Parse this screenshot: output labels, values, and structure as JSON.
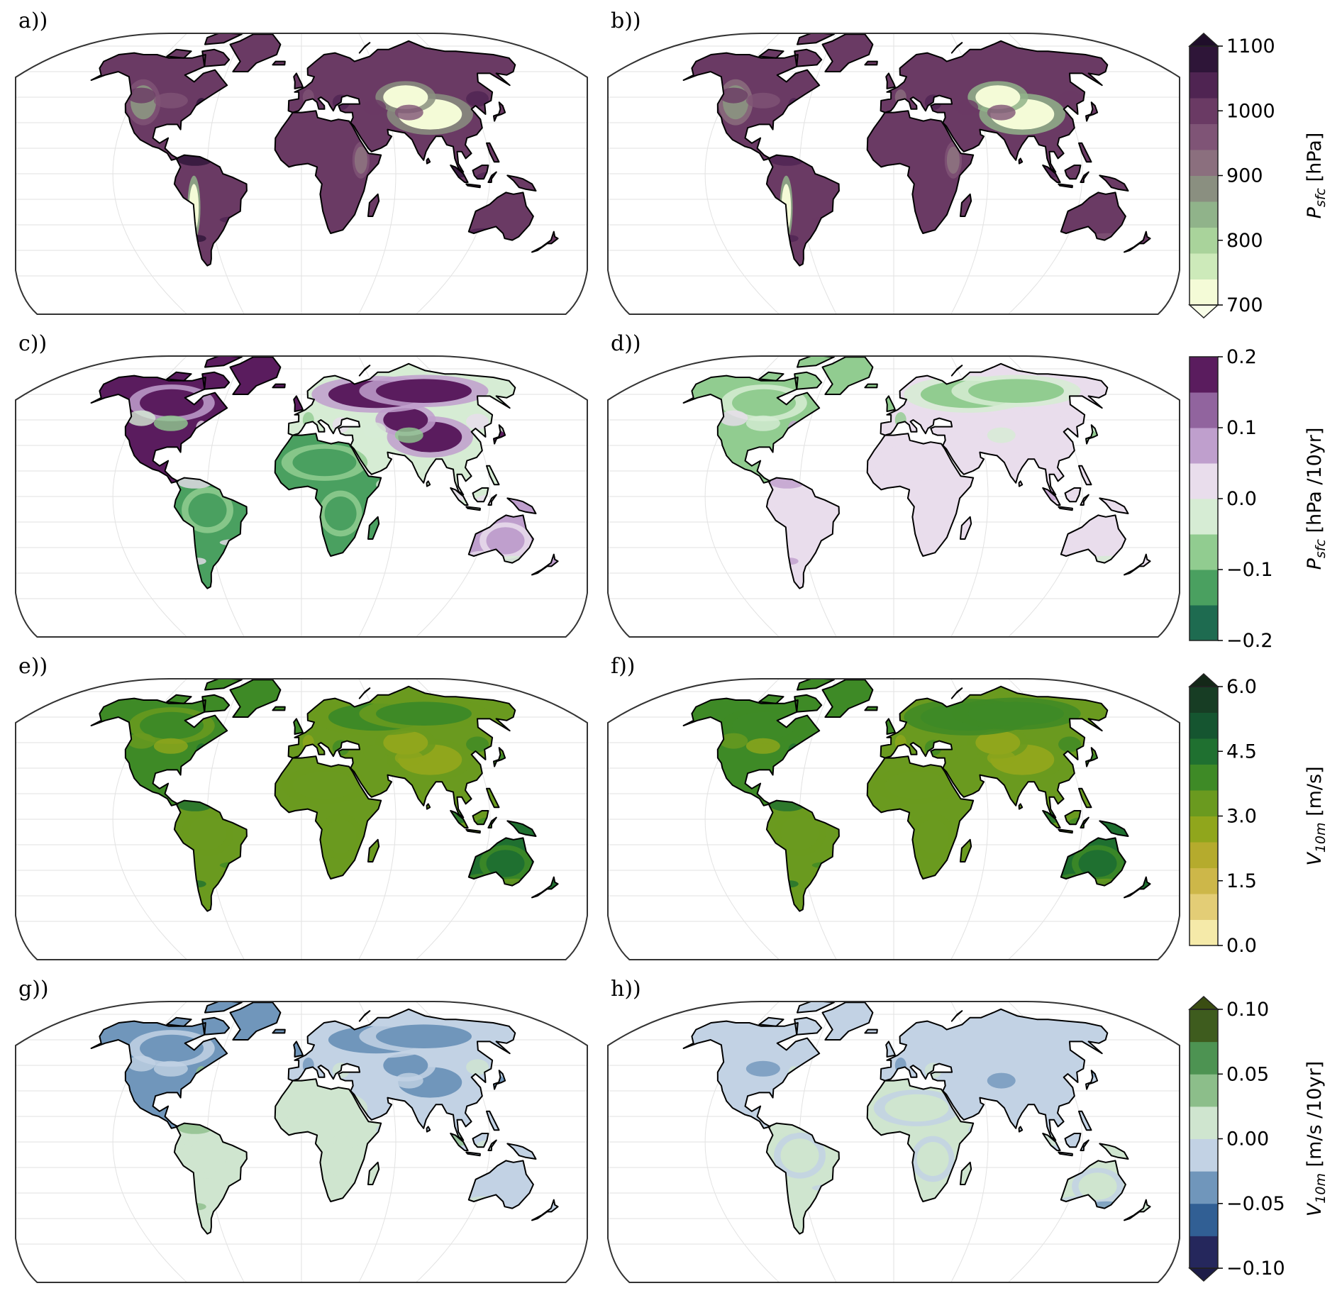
{
  "panels": [
    {
      "id": "a",
      "label": "a))",
      "row": 0,
      "col": 0
    },
    {
      "id": "b",
      "label": "b))",
      "row": 0,
      "col": 1
    },
    {
      "id": "c",
      "label": "c))",
      "row": 1,
      "col": 0
    },
    {
      "id": "d",
      "label": "d))",
      "row": 1,
      "col": 1
    },
    {
      "id": "e",
      "label": "e))",
      "row": 2,
      "col": 0
    },
    {
      "id": "f",
      "label": "f))",
      "row": 2,
      "col": 1
    },
    {
      "id": "g",
      "label": "g))",
      "row": 3,
      "col": 0
    },
    {
      "id": "h",
      "label": "h))",
      "row": 3,
      "col": 1
    }
  ],
  "colorbars": [
    {
      "row": 0,
      "quantity": "P",
      "subscript": "sfc",
      "unit": "[hPa]",
      "min": 700,
      "max": 1100,
      "extend_top": true,
      "extend_bottom": true,
      "ticks": [
        "700",
        "800",
        "900",
        "1000",
        "1100"
      ],
      "colors": [
        "#f4fbd7",
        "#cdeaba",
        "#a9d39b",
        "#90b38a",
        "#8a8f80",
        "#8b6f7e",
        "#7f5476",
        "#6a3a64",
        "#4f2452",
        "#2e1538"
      ],
      "over": "#1f0e2a",
      "under": "#f8fde8"
    },
    {
      "row": 1,
      "quantity": "P",
      "subscript": "sfc",
      "unit": "[hPa /10yr]",
      "min": -0.2,
      "max": 0.2,
      "extend_top": false,
      "extend_bottom": false,
      "ticks": [
        "−0.2",
        "−0.1",
        "0.0",
        "0.1",
        "0.2"
      ],
      "colors": [
        "#1e6b50",
        "#4aa060",
        "#91cc90",
        "#d6ecd4",
        "#e9ddec",
        "#bf9fcd",
        "#91649e",
        "#5a1c5e"
      ]
    },
    {
      "row": 2,
      "quantity": "V",
      "subscript": "10m",
      "unit": "[m/s]",
      "min": 0.0,
      "max": 6.0,
      "extend_top": true,
      "extend_bottom": false,
      "ticks": [
        "0.0",
        "1.5",
        "3.0",
        "4.5",
        "6.0"
      ],
      "colors": [
        "#f5eaa9",
        "#e3cd76",
        "#cdb749",
        "#b5ab2d",
        "#90a61c",
        "#6a9a1f",
        "#3e8a26",
        "#1f7030",
        "#155530",
        "#173d24"
      ],
      "over": "#142818"
    },
    {
      "row": 3,
      "quantity": "V",
      "subscript": "10m",
      "unit": "[m/s /10yr]",
      "min": -0.1,
      "max": 0.1,
      "extend_top": true,
      "extend_bottom": true,
      "ticks": [
        "−0.10",
        "−0.05",
        "0.00",
        "0.05",
        "0.10"
      ],
      "colors": [
        "#25275c",
        "#315f94",
        "#7096bb",
        "#c2d2e4",
        "#cfe5cf",
        "#8cbe8a",
        "#4d9352",
        "#3e5c1e"
      ],
      "over": "#3a4d12",
      "under": "#1d1c48"
    }
  ],
  "map_fill": {
    "a": {
      "cbar": 0,
      "land": 0.78,
      "plateau": 0.05,
      "andes": 0.0,
      "rockies": 0.45,
      "east_africa": 0.55
    },
    "b": {
      "cbar": 0,
      "land": 0.72,
      "plateau": 0.02,
      "andes": 0.0,
      "rockies": 0.4,
      "east_africa": 0.5
    },
    "c": {
      "cbar": 1,
      "land": 0.45,
      "north": 0.92,
      "africa": 0.2,
      "plateau": 0.95,
      "australia": 0.7
    },
    "d": {
      "cbar": 1,
      "land": 0.5,
      "north": 0.35,
      "africa": 0.55,
      "plateau": 0.55,
      "australia": 0.55
    },
    "e": {
      "cbar": 2,
      "land": 0.55,
      "north": 0.62,
      "africa": 0.5,
      "plateau": 0.45,
      "australia": 0.75
    },
    "f": {
      "cbar": 2,
      "land": 0.55,
      "north": 0.65,
      "africa": 0.5,
      "plateau": 0.45,
      "australia": 0.75
    },
    "g": {
      "cbar": 3,
      "land": 0.48,
      "north": 0.3,
      "africa": 0.52,
      "plateau": 0.35,
      "australia": 0.38
    },
    "h": {
      "cbar": 3,
      "land": 0.42,
      "north": 0.4,
      "africa": 0.5,
      "plateau": 0.45,
      "australia": 0.52
    }
  }
}
